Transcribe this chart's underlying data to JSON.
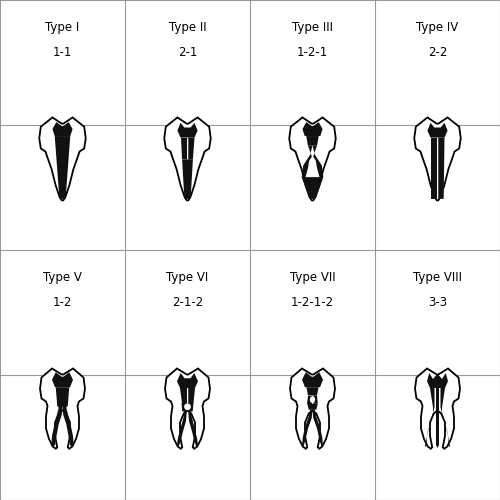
{
  "types": [
    {
      "label": "Type I",
      "sublabel": "1-1",
      "row": 0,
      "col": 0
    },
    {
      "label": "Type II",
      "sublabel": "2-1",
      "row": 0,
      "col": 1
    },
    {
      "label": "Type III",
      "sublabel": "1-2-1",
      "row": 0,
      "col": 2
    },
    {
      "label": "Type IV",
      "sublabel": "2-2",
      "row": 0,
      "col": 3
    },
    {
      "label": "Type V",
      "sublabel": "1-2",
      "row": 1,
      "col": 0
    },
    {
      "label": "Type VI",
      "sublabel": "2-1-2",
      "row": 1,
      "col": 1
    },
    {
      "label": "Type VII",
      "sublabel": "1-2-1-2",
      "row": 1,
      "col": 2
    },
    {
      "label": "Type VIII",
      "sublabel": "3-3",
      "row": 1,
      "col": 3
    }
  ],
  "bg_color": "#ffffff",
  "outline_color": "#000000",
  "canal_color": "#111111",
  "grid_color": "#999999",
  "label_fontsize": 8.5
}
